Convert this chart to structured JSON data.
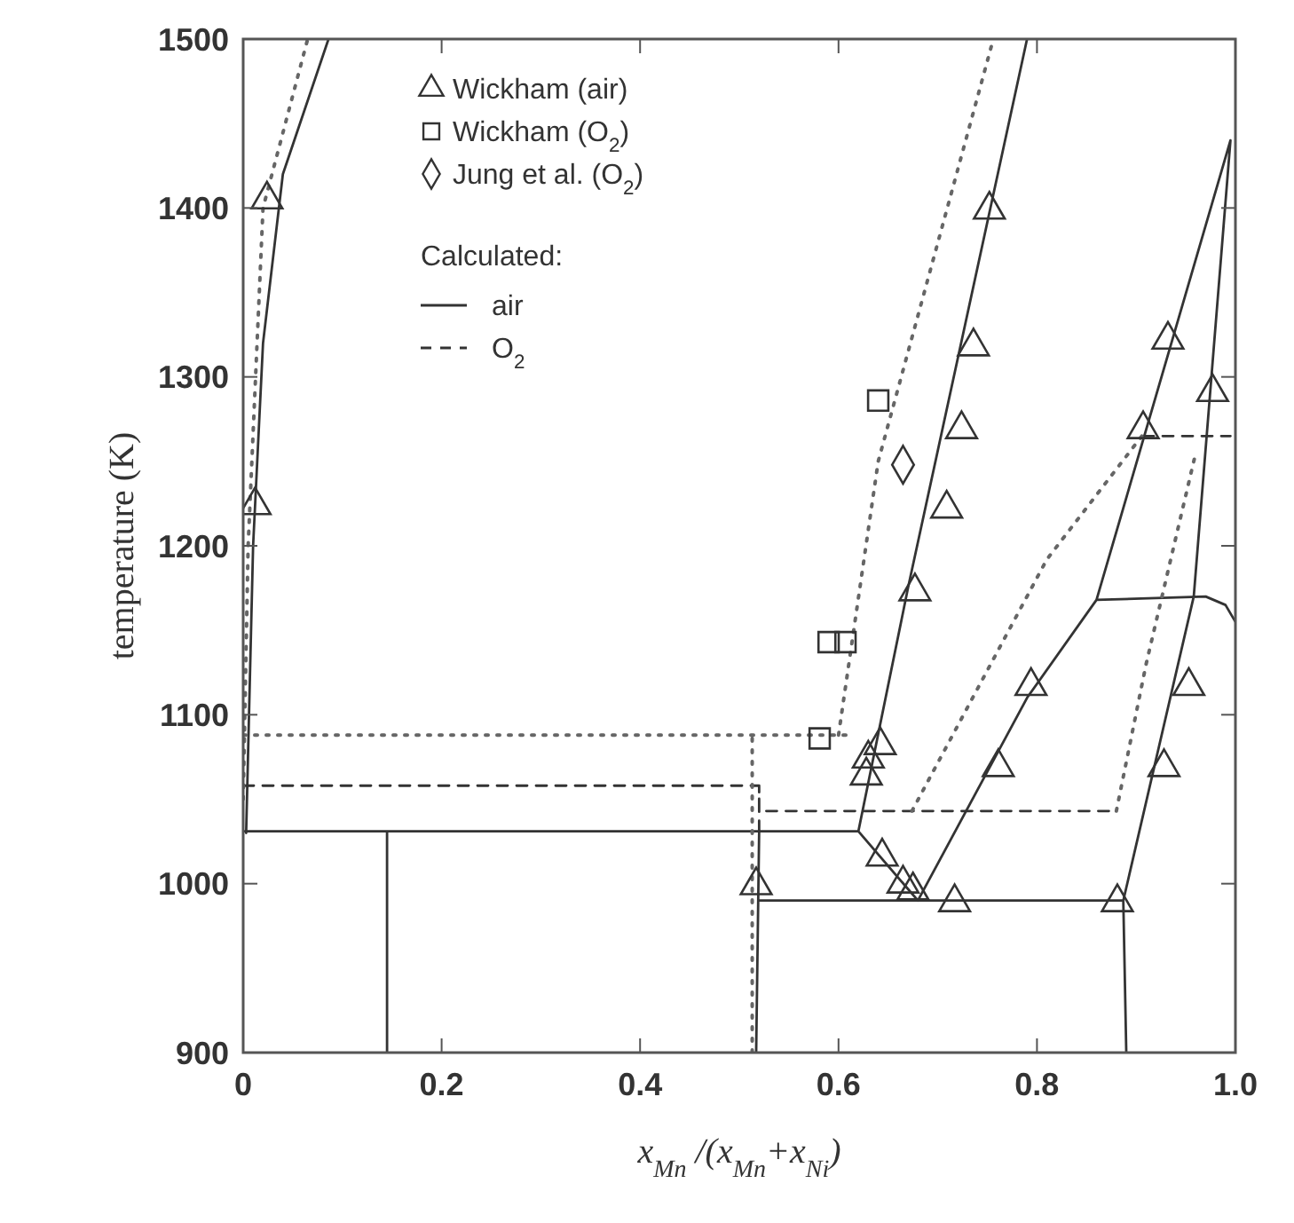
{
  "chart_data": {
    "type": "line",
    "xlabel": "x$_{Mn}$ /(x$_{Mn}$+x$_{Ni}$)",
    "ylabel": "temperature (K)",
    "legend_title": "Calculated:",
    "legend": "top left",
    "grid": false,
    "xlim": [
      0,
      1
    ],
    "xticks": [
      0,
      0.2,
      0.4,
      0.6,
      0.8,
      {
        "value": 1,
        "label": "1.0"
      }
    ],
    "ylim": [
      900,
      1500
    ],
    "yticks": [
      900,
      1000,
      1100,
      1200,
      1300,
      1400,
      1500
    ],
    "series": [
      {
        "type": "scatter",
        "name": "Wickham (air)",
        "color": "#333333",
        "marker": "triangle",
        "x": [
          0.024,
          0.012,
          0.752,
          0.736,
          0.724,
          0.709,
          0.932,
          0.907,
          0.977,
          0.677,
          0.642,
          0.63,
          0.628,
          0.794,
          0.761,
          0.953,
          0.928,
          0.644,
          0.665,
          0.675,
          0.517,
          0.717,
          0.881
        ],
        "values": [
          1405,
          1224,
          1399,
          1318,
          1269,
          1222,
          1322,
          1269,
          1291,
          1173,
          1082,
          1074,
          1064,
          1117,
          1069,
          1117,
          1069,
          1016,
          1000,
          996,
          999,
          989,
          989
        ]
      },
      {
        "type": "scatter",
        "name": "Wickham (O$_{2}$)",
        "color": "#333333",
        "marker": "square",
        "x": [
          0.64,
          0.59,
          0.607,
          0.581
        ],
        "values": [
          1286,
          1143,
          1143,
          1086
        ]
      },
      {
        "type": "scatter",
        "name": "Jung et al. (O$_{2}$)",
        "color": "#333333",
        "marker": "diamond",
        "x": [
          0.665
        ],
        "values": [
          1248
        ]
      },
      {
        "type": "line",
        "name": "air",
        "color": "#333333",
        "line_style": "solid",
        "x": [
          0.003,
          0.01,
          0.02,
          0.04,
          0.086,
          null,
          0,
          0.62,
          0.68,
          null,
          0.145,
          0.145,
          null,
          0.62,
          0.67,
          0.79,
          null,
          0.68,
          0.79,
          0.86,
          0.995,
          0.958,
          0.887,
          0.89,
          null,
          0.86,
          0.97,
          0.99,
          1,
          null,
          0.52,
          0.887,
          null,
          0.517,
          0.52
        ],
        "values": [
          1030,
          1200,
          1320,
          1420,
          1500,
          null,
          1031,
          1031,
          990,
          null,
          900,
          1031,
          null,
          1031,
          1175,
          1500,
          null,
          990,
          1110,
          1168,
          1440,
          1170,
          990,
          900,
          null,
          1168,
          1170,
          1165,
          1155,
          null,
          990,
          990,
          null,
          900,
          1031
        ]
      },
      {
        "type": "line",
        "name": "O$_{2}$",
        "color": "#333333",
        "line_style": "dashed",
        "x": [
          0,
          0.52,
          null,
          0.52,
          0.52,
          0.52,
          0.88,
          null,
          0.907,
          0.995
        ],
        "values": [
          1058,
          1058,
          null,
          1031,
          1058,
          1043,
          1043,
          null,
          1265,
          1265
        ]
      },
      {
        "type": "line",
        "color": "#666666",
        "line_style": "dotted",
        "x": [
          0,
          0.005,
          0.02,
          0.065,
          null,
          0,
          0.61,
          null,
          0.6,
          0.64,
          0.756,
          null,
          0.674,
          0.81,
          0.907,
          null,
          0.88,
          0.91,
          0.96,
          null,
          0.513,
          0.513
        ],
        "values": [
          1050,
          1200,
          1400,
          1500,
          null,
          1088,
          1088,
          null,
          1088,
          1250,
          1500,
          null,
          1043,
          1192,
          1266,
          null,
          1043,
          1130,
          1255,
          null,
          900,
          1088
        ]
      }
    ]
  }
}
